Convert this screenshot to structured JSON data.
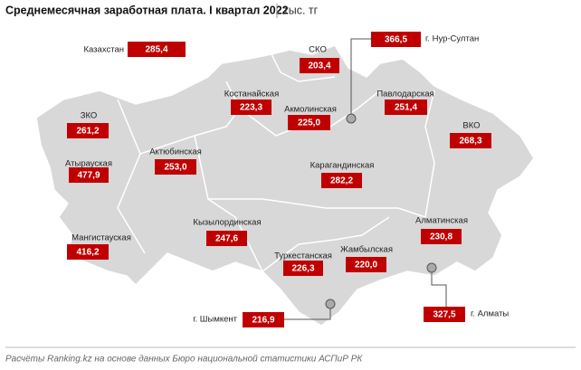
{
  "header": {
    "title": "Среднемесячная заработная плата. I квартал 2022",
    "unit": "тыс. тг"
  },
  "regions": [
    {
      "name": "Казахстан",
      "value": "285,4"
    },
    {
      "name": "СКО",
      "value": "203,4"
    },
    {
      "name": "г. Нур-Султан",
      "value": "366,5"
    },
    {
      "name": "Костанайская",
      "value": "223,3"
    },
    {
      "name": "Акмолинская",
      "value": "225,0"
    },
    {
      "name": "Павлодарская",
      "value": "251,4"
    },
    {
      "name": "ЗКО",
      "value": "261,2"
    },
    {
      "name": "ВКО",
      "value": "268,3"
    },
    {
      "name": "Атырауская",
      "value": "477,9"
    },
    {
      "name": "Актюбинская",
      "value": "253,0"
    },
    {
      "name": "Карагандинская",
      "value": "282,2"
    },
    {
      "name": "Кызылординская",
      "value": "247,6"
    },
    {
      "name": "Мангистауская",
      "value": "416,2"
    },
    {
      "name": "Алматинская",
      "value": "230,8"
    },
    {
      "name": "Туркестанская",
      "value": "226,3"
    },
    {
      "name": "Жамбылская",
      "value": "220,0"
    },
    {
      "name": "г. Алматы",
      "value": "327,5"
    },
    {
      "name": "г. Шымкент",
      "value": "216,9"
    }
  ],
  "footer": {
    "source": "Расчёты Ranking.kz на основе данных Бюро национальной статистики АСПиР РК"
  }
}
